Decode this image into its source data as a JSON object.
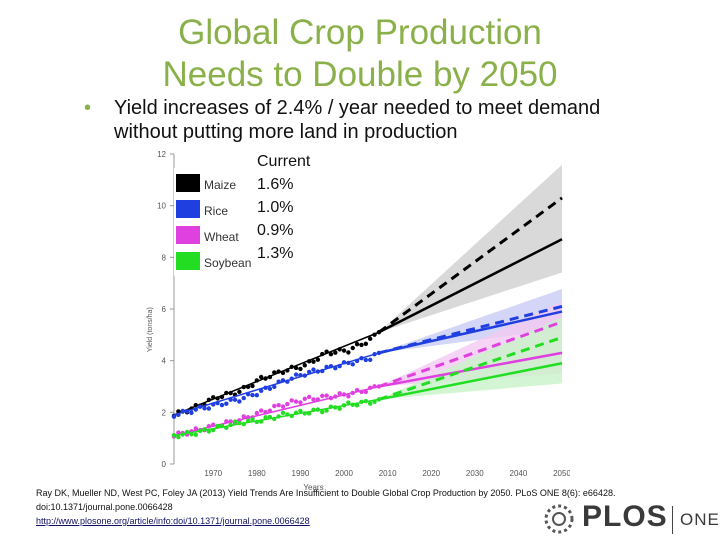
{
  "slide": {
    "title_line1": "Global Crop Production",
    "title_line2": "Needs to Double by 2050",
    "bullet_line1": "Yield increases of 2.4% / year needed to meet demand",
    "bullet_line2": "without putting more land in production",
    "bullet_symbol": "•"
  },
  "rates": {
    "header": "Current",
    "values": [
      "1.6%",
      "1.0%",
      "0.9%",
      "1.3%"
    ]
  },
  "citation": {
    "line1": "Ray DK, Mueller ND, West PC, Foley JA (2013) Yield Trends Are Insufficient to Double Global Crop Production by 2050. PLoS ONE 8(6): e66428.",
    "line2": "doi:10.1371/journal.pone.0066428",
    "link": "http://www.plosone.org/article/info:doi/10.1371/journal.pone.0066428"
  },
  "logo": {
    "word": "PLOS",
    "suffix": "ONE"
  },
  "colors": {
    "title": "#8ab04a",
    "Maize": "#000000",
    "Rice": "#1f3fe0",
    "Wheat": "#e040e0",
    "Soybean": "#22dd22"
  },
  "chart_data": {
    "type": "line",
    "xlabel": "Years",
    "ylabel": "Yield (tons/ha)",
    "xlim": [
      1961,
      2050
    ],
    "ylim": [
      0,
      12
    ],
    "xticks": [
      1970,
      1980,
      1990,
      2000,
      2010,
      2020,
      2030,
      2040,
      2050
    ],
    "yticks": [
      0,
      2,
      4,
      6,
      8,
      10,
      12
    ],
    "legend": {
      "placement": "top-left",
      "entries": [
        "Maize",
        "Rice",
        "Wheat",
        "Soybean"
      ]
    },
    "grid": false,
    "observed_x": [
      1961,
      1966,
      1971,
      1976,
      1981,
      1986,
      1991,
      1996,
      2001,
      2006,
      2008
    ],
    "series": [
      {
        "name": "Maize",
        "observed": [
          1.9,
          2.2,
          2.6,
          2.8,
          3.3,
          3.6,
          3.8,
          4.3,
          4.4,
          4.8,
          5.1
        ],
        "trend_end": 8.7,
        "required_end": 10.3
      },
      {
        "name": "Rice",
        "observed": [
          1.9,
          2.1,
          2.3,
          2.5,
          2.8,
          3.2,
          3.5,
          3.7,
          3.9,
          4.1,
          4.3
        ],
        "trend_end": 5.9,
        "required_end": 6.1
      },
      {
        "name": "Wheat",
        "observed": [
          1.1,
          1.3,
          1.5,
          1.7,
          2.0,
          2.3,
          2.5,
          2.6,
          2.7,
          2.9,
          3.0
        ],
        "trend_end": 4.3,
        "required_end": 5.5
      },
      {
        "name": "Soybean",
        "observed": [
          1.1,
          1.2,
          1.4,
          1.6,
          1.7,
          1.9,
          2.0,
          2.1,
          2.3,
          2.4,
          2.5
        ],
        "trend_end": 3.9,
        "required_end": 4.9
      }
    ]
  }
}
